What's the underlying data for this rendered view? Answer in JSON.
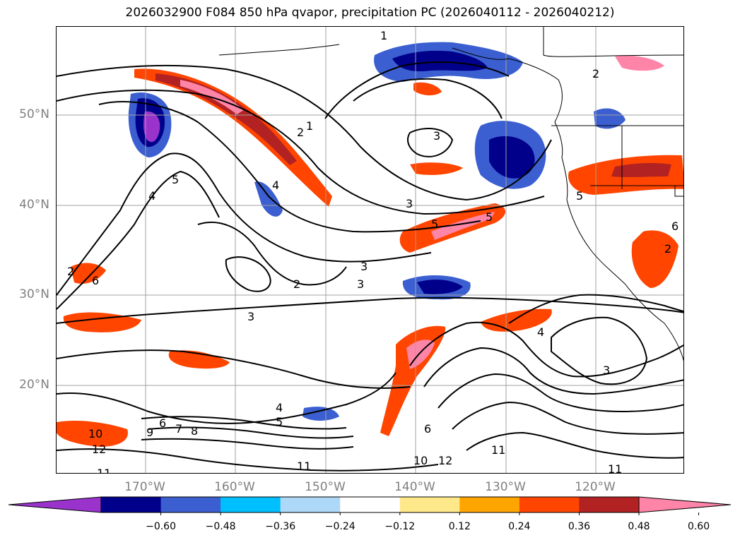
{
  "title": "2026032900 F084 850 hPa qvapor, precipitation PC (2026040112 - 2026040212)",
  "axes": {
    "lat_labels": [
      "50°N",
      "40°N",
      "30°N",
      "20°N"
    ],
    "lon_labels": [
      "170°W",
      "160°W",
      "150°W",
      "140°W",
      "130°W",
      "120°W"
    ]
  },
  "colorbar": {
    "colors": [
      "#9933cc",
      "#00008b",
      "#3b5fd0",
      "#00bfff",
      "#add8f7",
      "#ffffff",
      "#ffe88a",
      "#ffa500",
      "#ff4500",
      "#b22222",
      "#ff85a8"
    ],
    "tick_labels": [
      "−0.60",
      "−0.48",
      "−0.36",
      "−0.24",
      "−0.12",
      "0.12",
      "0.24",
      "0.36",
      "0.48",
      "0.60"
    ]
  },
  "contour_labels": [
    "1",
    "1",
    "2",
    "2",
    "2",
    "2",
    "2",
    "3",
    "3",
    "3",
    "3",
    "3",
    "3",
    "4",
    "4",
    "4",
    "4",
    "5",
    "5",
    "5",
    "5",
    "5",
    "6",
    "6",
    "6",
    "6",
    "7",
    "8",
    "9",
    "10",
    "10",
    "11",
    "11",
    "11",
    "11",
    "12",
    "12"
  ]
}
